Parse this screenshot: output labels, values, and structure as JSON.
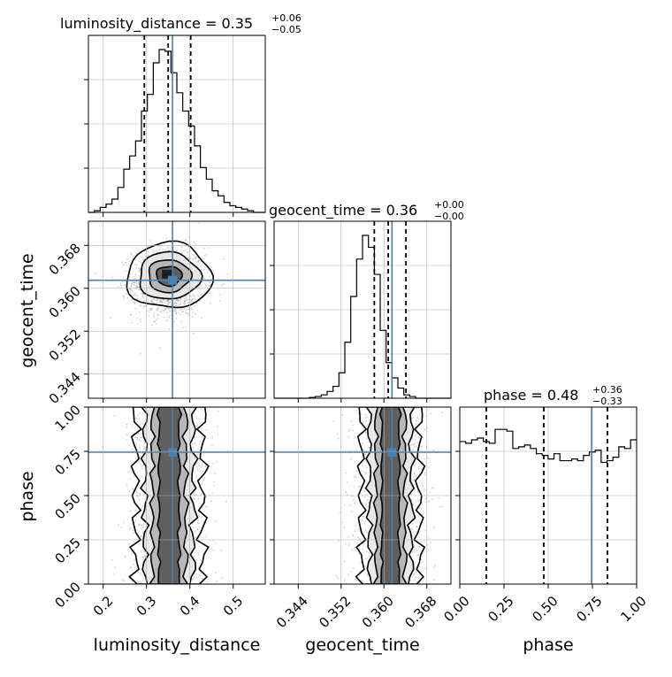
{
  "chart_data": {
    "type": "corner",
    "parameters": [
      {
        "name": "luminosity_distance",
        "axis_label": "luminosity_distance",
        "title": "luminosity_distance = 0.35",
        "title_upper": "+0.06",
        "title_lower": "−0.05",
        "range": [
          0.166,
          0.574
        ],
        "ticks": [
          0.2,
          0.3,
          0.4,
          0.5
        ],
        "tick_labels": [
          "0.2",
          "0.3",
          "0.4",
          "0.5"
        ],
        "truth": 0.36,
        "quantiles": [
          0.295,
          0.35,
          0.402
        ],
        "hist_edges_start": 0.166,
        "hist_bin_width": 0.0136,
        "hist_counts": [
          0.0,
          0.01,
          0.03,
          0.05,
          0.08,
          0.15,
          0.26,
          0.34,
          0.43,
          0.61,
          0.71,
          0.9,
          0.98,
          0.97,
          0.84,
          0.72,
          0.61,
          0.52,
          0.4,
          0.27,
          0.2,
          0.13,
          0.1,
          0.06,
          0.04,
          0.03,
          0.02,
          0.01,
          0.0,
          0.0
        ]
      },
      {
        "name": "geocent_time",
        "axis_label": "geocent_time",
        "title": "geocent_time = 0.36",
        "title_upper": "+0.00",
        "title_lower": "−0.00",
        "range": [
          0.3395,
          0.3725
        ],
        "ticks": [
          0.344,
          0.352,
          0.36,
          0.368
        ],
        "tick_labels": [
          "0.344",
          "0.352",
          "0.360",
          "0.368"
        ],
        "truth": 0.3615,
        "quantiles": [
          0.3582,
          0.3608,
          0.3641
        ],
        "hist_edges_start": 0.3395,
        "hist_bin_width": 0.0011,
        "hist_counts": [
          0,
          0,
          0,
          0,
          0,
          0,
          0.005,
          0.01,
          0.02,
          0.04,
          0.07,
          0.15,
          0.33,
          0.6,
          0.82,
          0.96,
          0.89,
          0.73,
          0.4,
          0.21,
          0.12,
          0.06,
          0.02,
          0.01,
          0,
          0,
          0,
          0,
          0,
          0
        ]
      },
      {
        "name": "phase",
        "axis_label": "phase",
        "title": "phase = 0.48",
        "title_upper": "+0.36",
        "title_lower": "−0.33",
        "range": [
          0.0,
          1.0
        ],
        "ticks": [
          0.0,
          0.25,
          0.5,
          0.75,
          1.0
        ],
        "tick_labels": [
          "0.00",
          "0.25",
          "0.50",
          "0.75",
          "1.00"
        ],
        "truth": 0.745,
        "quantiles": [
          0.15,
          0.475,
          0.835
        ],
        "hist_edges_start": 0.0,
        "hist_bin_width": 0.0333,
        "hist_counts": [
          0.82,
          0.81,
          0.83,
          0.84,
          0.82,
          0.81,
          0.89,
          0.89,
          0.88,
          0.78,
          0.79,
          0.8,
          0.78,
          0.75,
          0.74,
          0.72,
          0.75,
          0.71,
          0.71,
          0.72,
          0.71,
          0.74,
          0.76,
          0.77,
          0.7,
          0.71,
          0.73,
          0.79,
          0.78,
          0.83
        ]
      }
    ],
    "pairs": [
      {
        "x": "luminosity_distance",
        "y": "geocent_time"
      },
      {
        "x": "luminosity_distance",
        "y": "phase"
      },
      {
        "x": "geocent_time",
        "y": "phase"
      }
    ],
    "grid": true,
    "colors": {
      "truth": "#4682b4",
      "lines": "#000000",
      "grid": "#b0b0b0",
      "samples": "#808080"
    }
  }
}
